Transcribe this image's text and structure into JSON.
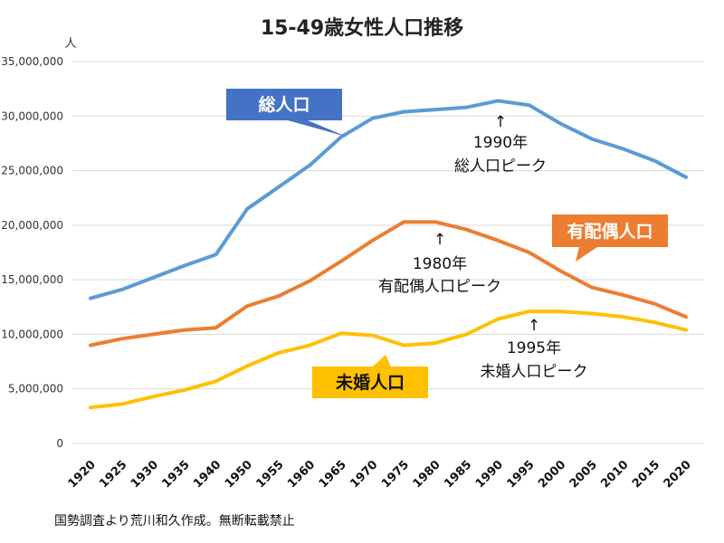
{
  "chart_data": {
    "type": "line",
    "title": "15-49歳女性人口推移",
    "ylabel": "人",
    "ylim": [
      0,
      35000000
    ],
    "yticks": [
      0,
      5000000,
      10000000,
      15000000,
      20000000,
      25000000,
      30000000,
      35000000
    ],
    "ytick_labels": [
      "0",
      "5,000,000",
      "10,000,000",
      "15,000,000",
      "20,000,000",
      "25,000,000",
      "30,000,000",
      "35,000,000"
    ],
    "grid": true,
    "x": [
      "1920",
      "1925",
      "1930",
      "1935",
      "1940",
      "1950",
      "1955",
      "1960",
      "1965",
      "1970",
      "1975",
      "1980",
      "1985",
      "1990",
      "1995",
      "2000",
      "2005",
      "2010",
      "2015",
      "2020"
    ],
    "series": [
      {
        "name": "総人口",
        "color": "#5b9bd5",
        "values": [
          13300000,
          14100000,
          15200000,
          16300000,
          17300000,
          21500000,
          23500000,
          25500000,
          28100000,
          29800000,
          30400000,
          30600000,
          30800000,
          31400000,
          31000000,
          29300000,
          27900000,
          27000000,
          25900000,
          24400000
        ]
      },
      {
        "name": "有配偶人口",
        "color": "#ed7d31",
        "values": [
          9000000,
          9600000,
          10000000,
          10400000,
          10600000,
          12600000,
          13500000,
          14900000,
          16700000,
          18600000,
          20300000,
          20300000,
          19600000,
          18600000,
          17500000,
          15800000,
          14300000,
          13600000,
          12800000,
          11600000
        ]
      },
      {
        "name": "未婚人口",
        "color": "#ffc000",
        "values": [
          3300000,
          3600000,
          4300000,
          4900000,
          5700000,
          7100000,
          8300000,
          9000000,
          10100000,
          9900000,
          9000000,
          9200000,
          10000000,
          11400000,
          12100000,
          12100000,
          11900000,
          11600000,
          11100000,
          10400000
        ]
      }
    ],
    "annotations": [
      {
        "arrow": "↑",
        "line1": "1990年",
        "line2": "総人口ピーク"
      },
      {
        "arrow": "↑",
        "line1": "1980年",
        "line2": "有配偶人口ピーク"
      },
      {
        "arrow": "↑",
        "line1": "1995年",
        "line2": "未婚人口ピーク"
      }
    ]
  },
  "source_note": "国勢調査より荒川和久作成。無断転載禁止"
}
